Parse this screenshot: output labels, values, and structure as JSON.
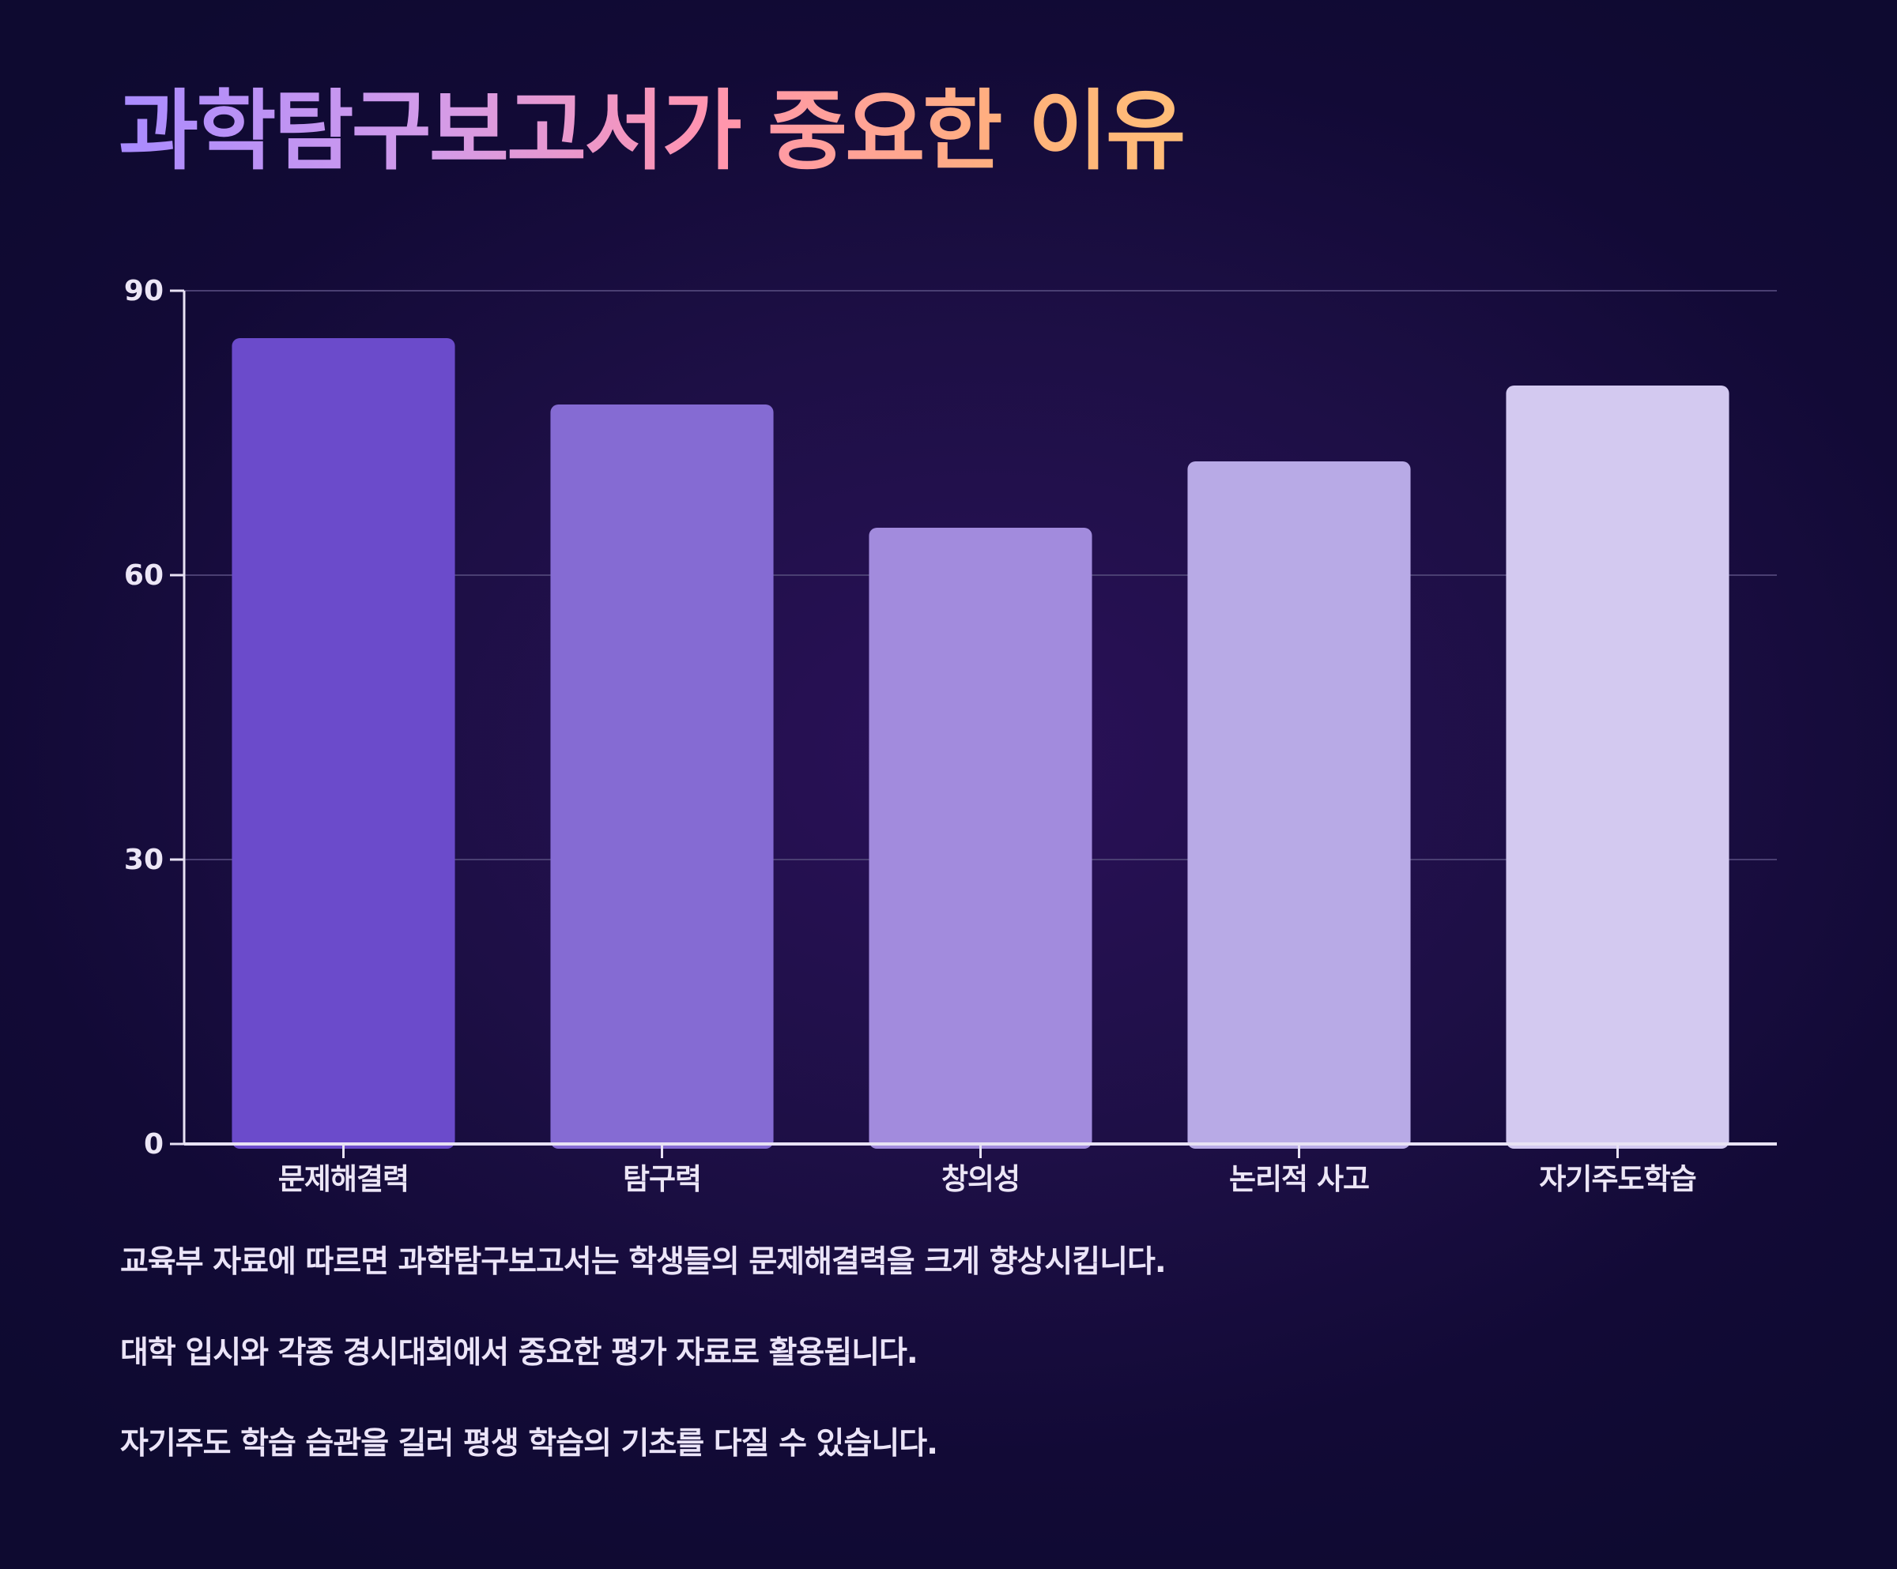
{
  "title": "과학탐구보고서가 중요한 이유",
  "chart_data": {
    "type": "bar",
    "categories": [
      "문제해결력",
      "탐구력",
      "창의성",
      "논리적 사고",
      "자기주도학습"
    ],
    "values": [
      85,
      78,
      65,
      72,
      80
    ],
    "ylim": [
      0,
      90
    ],
    "yticks": [
      0,
      30,
      60,
      90
    ],
    "grid": true,
    "legend": "none",
    "colors": [
      "#6b4bcb",
      "#856bd3",
      "#a28bdd",
      "#b8aae6",
      "#d3c9f0"
    ]
  },
  "notes": [
    "교육부 자료에 따르면 과학탐구보고서는 학생들의 문제해결력을 크게 향상시킵니다.",
    "대학 입시와 각종 경시대회에서 중요한 평가 자료로 활용됩니다.",
    "자기주도 학습 습관을 길러 평생 학습의 기초를 다질 수 있습니다."
  ],
  "colors": {
    "axis": "#e8e2f4",
    "grid": "#4a3f72",
    "tick_text": "#ece6f6"
  }
}
